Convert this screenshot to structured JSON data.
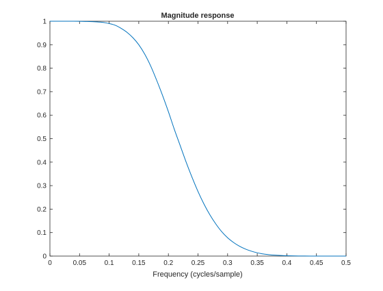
{
  "chart_data": {
    "type": "line",
    "title": "Magnitude response",
    "xlabel": "Frequency (cycles/sample)",
    "ylabel": "",
    "xlim": [
      0,
      0.5
    ],
    "ylim": [
      0,
      1
    ],
    "grid": false,
    "legend": "none",
    "x_ticks": [
      "0",
      "0.05",
      "0.1",
      "0.15",
      "0.2",
      "0.25",
      "0.3",
      "0.35",
      "0.4",
      "0.45",
      "0.5"
    ],
    "y_ticks": [
      "0",
      "0.1",
      "0.2",
      "0.3",
      "0.4",
      "0.5",
      "0.6",
      "0.7",
      "0.8",
      "0.9",
      "1"
    ],
    "series": [
      {
        "color": "#0072bd",
        "x": [
          0,
          0.02,
          0.04,
          0.06,
          0.08,
          0.09,
          0.1,
          0.11,
          0.12,
          0.13,
          0.14,
          0.15,
          0.16,
          0.17,
          0.18,
          0.19,
          0.2,
          0.21,
          0.22,
          0.23,
          0.24,
          0.25,
          0.26,
          0.27,
          0.28,
          0.29,
          0.3,
          0.31,
          0.32,
          0.33,
          0.34,
          0.35,
          0.36,
          0.37,
          0.38,
          0.39,
          0.4,
          0.42,
          0.44,
          0.46,
          0.48,
          0.5
        ],
        "y": [
          1,
          1,
          1,
          0.999,
          0.997,
          0.995,
          0.99,
          0.983,
          0.97,
          0.953,
          0.93,
          0.9,
          0.86,
          0.81,
          0.75,
          0.685,
          0.615,
          0.54,
          0.47,
          0.4,
          0.335,
          0.275,
          0.222,
          0.176,
          0.137,
          0.104,
          0.078,
          0.058,
          0.042,
          0.03,
          0.021,
          0.014,
          0.009,
          0.006,
          0.004,
          0.0025,
          0.0015,
          0.0005,
          0.0001,
          0,
          0,
          0
        ]
      }
    ]
  }
}
